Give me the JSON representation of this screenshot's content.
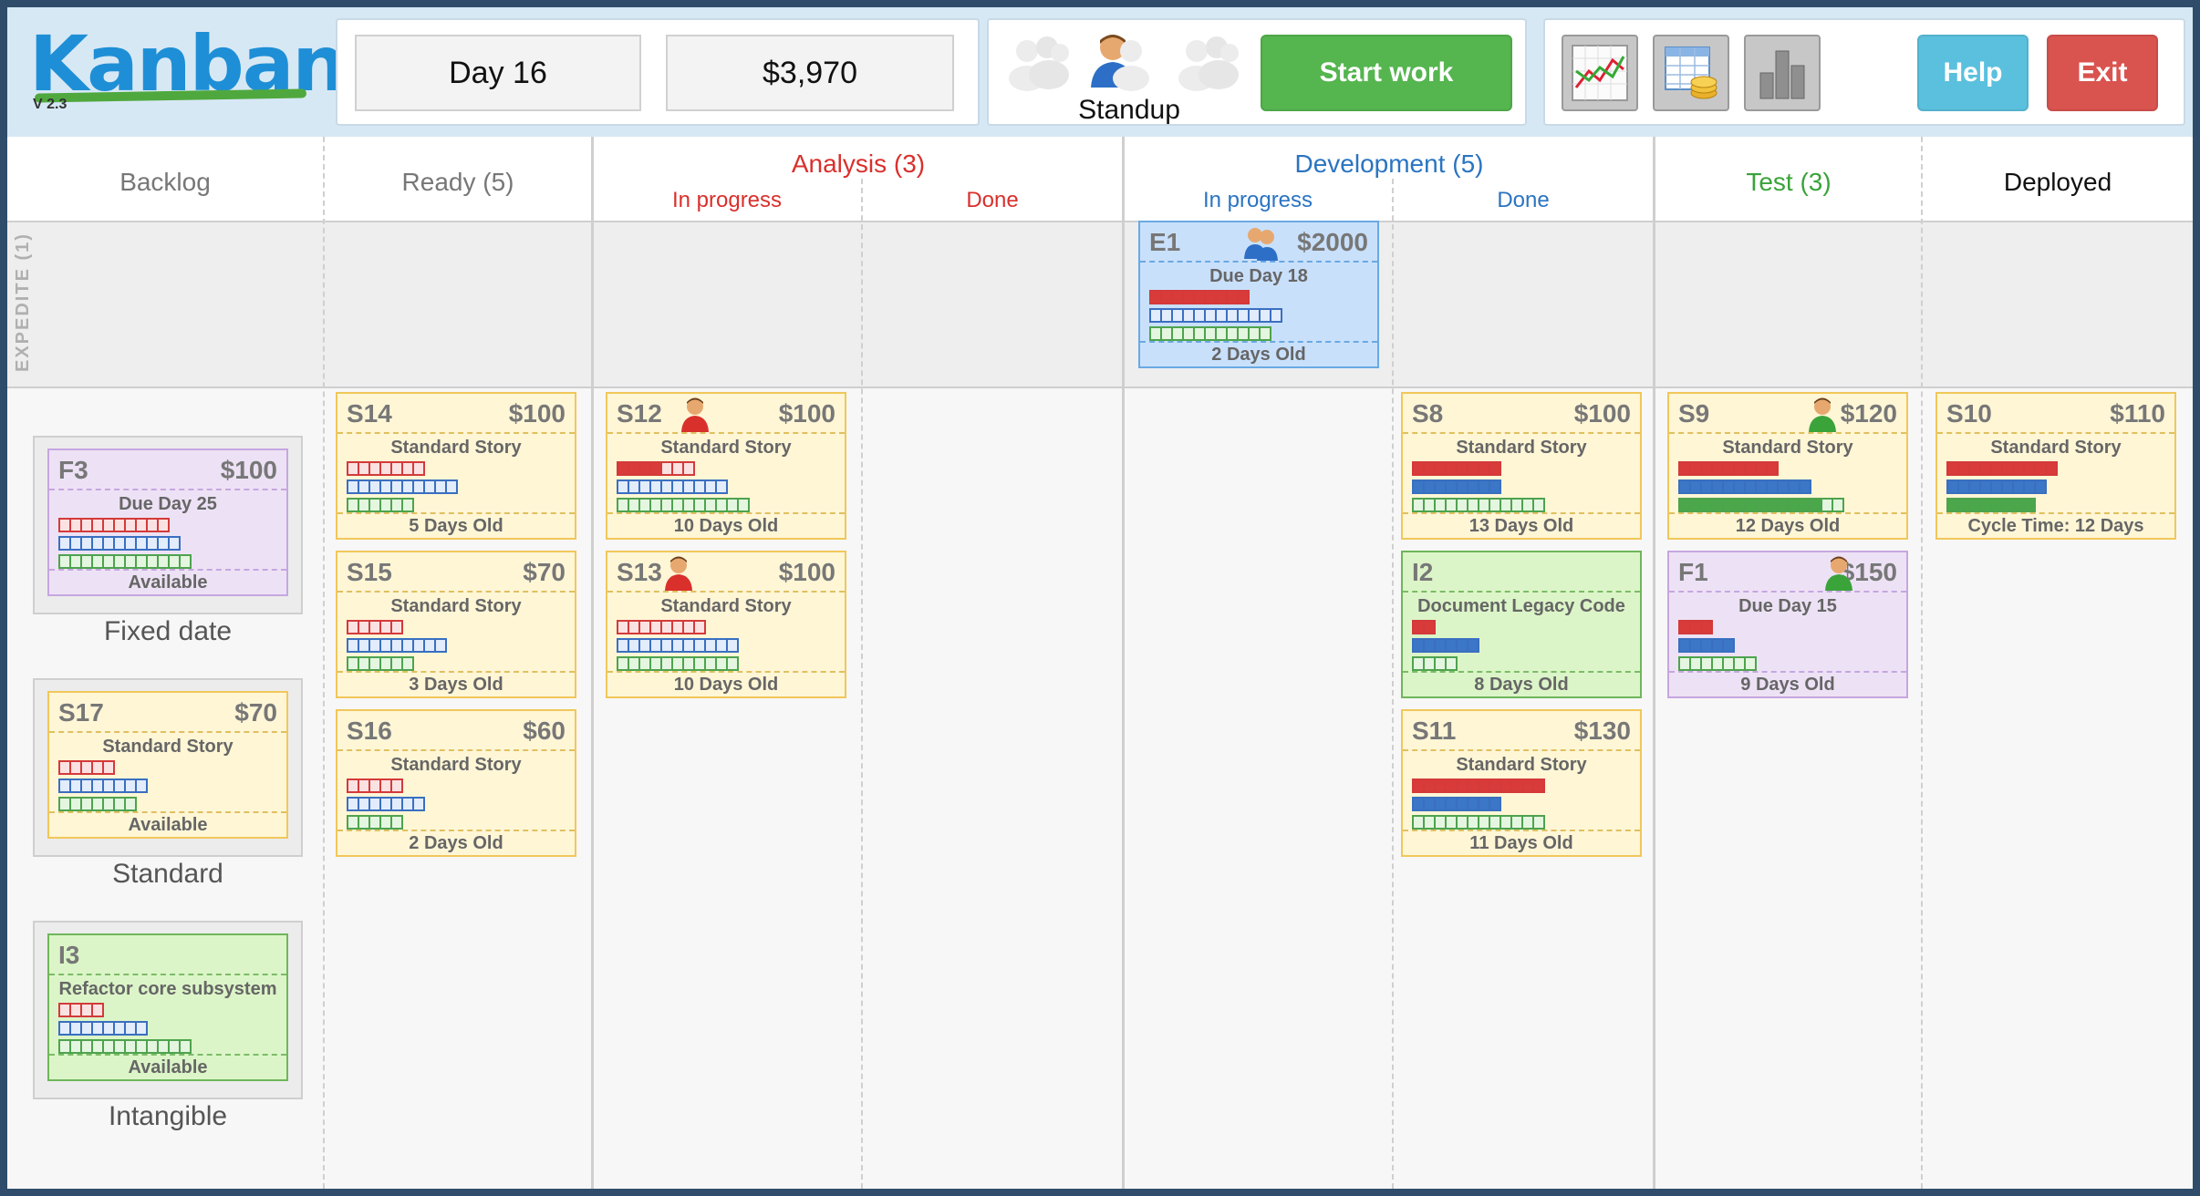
{
  "app": {
    "logo": "Kanban",
    "version": "V 2.3"
  },
  "topbar": {
    "day": "Day 16",
    "money": "$3,970",
    "standup_label": "Standup",
    "start_label": "Start work",
    "help_label": "Help",
    "exit_label": "Exit",
    "colors": {
      "start": "#55b54f",
      "help": "#5bc0de",
      "exit": "#d9534f"
    },
    "tools": [
      "line-chart-icon",
      "table-coins-icon",
      "bar-chart-icon"
    ]
  },
  "columns": {
    "backlog": "Backlog",
    "ready": "Ready (5)",
    "analysis": "Analysis (3)",
    "analysis_in_progress": "In progress",
    "analysis_done": "Done",
    "development": "Development (5)",
    "development_in_progress": "In progress",
    "development_done": "Done",
    "test": "Test (3)",
    "deployed": "Deployed"
  },
  "lanes": {
    "expedite": "EXPEDITE (1)"
  },
  "backlog": {
    "fixed_label": "Fixed date",
    "standard_label": "Standard",
    "intangible_label": "Intangible"
  },
  "cards": [
    {
      "id": "E1",
      "value": "$2000",
      "type": "Due Day 18",
      "footer": "2 Days Old",
      "bars": {
        "red": [
          9,
          9
        ],
        "blue": [
          0,
          12
        ],
        "green": [
          0,
          11
        ]
      }
    },
    {
      "id": "F3",
      "value": "$100",
      "type": "Due Day 25",
      "footer": "Available",
      "bars": {
        "red": [
          0,
          10
        ],
        "blue": [
          0,
          11
        ],
        "green": [
          0,
          12
        ]
      }
    },
    {
      "id": "S17",
      "value": "$70",
      "type": "Standard Story",
      "footer": "Available",
      "bars": {
        "red": [
          0,
          5
        ],
        "blue": [
          0,
          8
        ],
        "green": [
          0,
          7
        ]
      }
    },
    {
      "id": "I3",
      "value": "",
      "type": "Refactor core subsystem",
      "footer": "Available",
      "bars": {
        "red": [
          0,
          4
        ],
        "blue": [
          0,
          8
        ],
        "green": [
          0,
          12
        ]
      }
    },
    {
      "id": "S14",
      "value": "$100",
      "type": "Standard Story",
      "footer": "5 Days Old",
      "bars": {
        "red": [
          0,
          7
        ],
        "blue": [
          0,
          10
        ],
        "green": [
          0,
          6
        ]
      }
    },
    {
      "id": "S15",
      "value": "$70",
      "type": "Standard Story",
      "footer": "3 Days Old",
      "bars": {
        "red": [
          0,
          5
        ],
        "blue": [
          0,
          9
        ],
        "green": [
          0,
          6
        ]
      }
    },
    {
      "id": "S16",
      "value": "$60",
      "type": "Standard Story",
      "footer": "2 Days Old",
      "bars": {
        "red": [
          0,
          5
        ],
        "blue": [
          0,
          7
        ],
        "green": [
          0,
          5
        ]
      }
    },
    {
      "id": "S12",
      "value": "$100",
      "type": "Standard Story",
      "footer": "10 Days Old",
      "bars": {
        "red": [
          4,
          7
        ],
        "blue": [
          0,
          10
        ],
        "green": [
          0,
          12
        ]
      }
    },
    {
      "id": "S13",
      "value": "$100",
      "type": "Standard Story",
      "footer": "10 Days Old",
      "bars": {
        "red": [
          0,
          8
        ],
        "blue": [
          0,
          11
        ],
        "green": [
          0,
          11
        ]
      }
    },
    {
      "id": "S8",
      "value": "$100",
      "type": "Standard Story",
      "footer": "13 Days Old",
      "bars": {
        "red": [
          8,
          8
        ],
        "blue": [
          8,
          8
        ],
        "green": [
          0,
          12
        ]
      }
    },
    {
      "id": "I2",
      "value": "",
      "type": "Document Legacy Code",
      "footer": "8 Days Old",
      "bars": {
        "red": [
          2,
          2
        ],
        "blue": [
          6,
          6
        ],
        "green": [
          0,
          4
        ]
      }
    },
    {
      "id": "S11",
      "value": "$130",
      "type": "Standard Story",
      "footer": "11 Days Old",
      "bars": {
        "red": [
          12,
          12
        ],
        "blue": [
          8,
          8
        ],
        "green": [
          0,
          12
        ]
      }
    },
    {
      "id": "S9",
      "value": "$120",
      "type": "Standard Story",
      "footer": "12 Days Old",
      "bars": {
        "red": [
          9,
          9
        ],
        "blue": [
          12,
          12
        ],
        "green": [
          13,
          15
        ]
      }
    },
    {
      "id": "F1",
      "value": "$150",
      "type": "Due Day 15",
      "footer": "9 Days Old",
      "bars": {
        "red": [
          3,
          3
        ],
        "blue": [
          5,
          5
        ],
        "green": [
          0,
          7
        ]
      }
    },
    {
      "id": "S10",
      "value": "$110",
      "type": "Standard Story",
      "footer": "Cycle Time: 12 Days",
      "bars": {
        "red": [
          10,
          10
        ],
        "blue": [
          9,
          9
        ],
        "green": [
          8,
          8
        ]
      }
    }
  ]
}
